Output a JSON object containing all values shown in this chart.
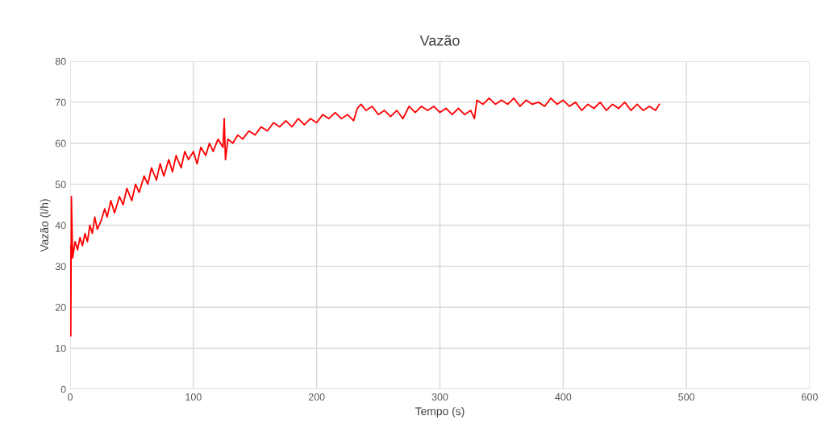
{
  "chart_data": {
    "type": "line",
    "title": "Vazão",
    "xlabel": "Tempo (s)",
    "ylabel": "Vazão (l/h)",
    "xlim": [
      0,
      600
    ],
    "xticks": [
      0,
      100,
      200,
      300,
      400,
      500,
      600
    ],
    "ylim": [
      0,
      80
    ],
    "yticks": [
      0,
      10,
      20,
      30,
      40,
      50,
      60,
      70,
      80
    ],
    "grid": true,
    "line_style": "solid",
    "series": [
      {
        "color": "#ff0000",
        "x": [
          0,
          0.5,
          1,
          2,
          4,
          6,
          8,
          10,
          12,
          14,
          16,
          18,
          20,
          22,
          25,
          28,
          30,
          33,
          36,
          40,
          43,
          46,
          50,
          53,
          56,
          60,
          63,
          66,
          70,
          73,
          76,
          80,
          83,
          86,
          90,
          93,
          96,
          100,
          103,
          106,
          110,
          113,
          116,
          120,
          124,
          125,
          126,
          128,
          132,
          136,
          140,
          145,
          150,
          155,
          160,
          165,
          170,
          175,
          180,
          185,
          190,
          195,
          200,
          205,
          210,
          215,
          220,
          225,
          230,
          233,
          236,
          240,
          245,
          250,
          255,
          260,
          265,
          270,
          275,
          280,
          285,
          290,
          295,
          300,
          305,
          310,
          315,
          320,
          325,
          328,
          330,
          335,
          340,
          345,
          350,
          355,
          360,
          365,
          370,
          375,
          380,
          385,
          390,
          395,
          400,
          405,
          410,
          415,
          420,
          425,
          430,
          435,
          440,
          445,
          450,
          455,
          460,
          465,
          470,
          475,
          478
        ],
        "values": [
          35,
          13,
          47,
          32,
          36,
          34,
          37,
          35,
          38,
          36,
          40,
          38,
          42,
          39,
          41,
          44,
          42,
          46,
          43,
          47,
          45,
          49,
          46,
          50,
          48,
          52,
          50,
          54,
          51,
          55,
          52,
          56,
          53,
          57,
          54,
          58,
          56,
          58,
          55,
          59,
          57,
          60,
          58,
          61,
          59,
          66,
          56,
          61,
          60,
          62,
          61,
          63,
          62,
          64,
          63,
          65,
          64,
          65.5,
          64,
          66,
          64.5,
          66,
          65,
          67,
          66,
          67.5,
          66,
          67,
          65.5,
          68.5,
          69.5,
          68,
          69,
          67,
          68,
          66.5,
          68,
          66,
          69,
          67.5,
          69,
          68,
          69,
          67.5,
          68.5,
          67,
          68.5,
          67,
          68,
          66,
          70.5,
          69.5,
          71,
          69.5,
          70.5,
          69.5,
          71,
          69,
          70.5,
          69.5,
          70,
          69,
          71,
          69.5,
          70.5,
          69,
          70,
          68,
          69.5,
          68.5,
          70,
          68,
          69.5,
          68.5,
          70,
          68,
          69.5,
          68,
          69,
          68,
          69.5
        ]
      }
    ]
  }
}
